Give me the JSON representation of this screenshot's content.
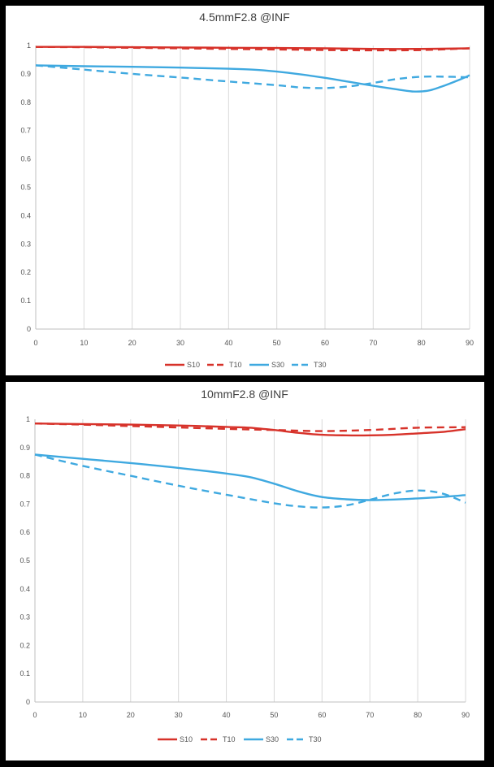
{
  "chart_data": [
    {
      "type": "line",
      "title": "4.5mmF2.8 @INF",
      "xlim": [
        0,
        90
      ],
      "ylim": [
        0,
        1
      ],
      "x_ticks": [
        "0",
        "10",
        "20",
        "30",
        "40",
        "50",
        "60",
        "70",
        "80",
        "90"
      ],
      "y_ticks": [
        "0",
        "0.1",
        "0.2",
        "0.3",
        "0.4",
        "0.5",
        "0.6",
        "0.7",
        "0.8",
        "0.9",
        "1"
      ],
      "grid": "vertical",
      "legend": "bottom",
      "series": [
        {
          "name": "S10",
          "color": "#d7322a",
          "style": "solid",
          "x": [
            0,
            10,
            20,
            30,
            40,
            50,
            60,
            70,
            80,
            90
          ],
          "y": [
            0.995,
            0.995,
            0.994,
            0.993,
            0.992,
            0.991,
            0.99,
            0.988,
            0.988,
            0.99
          ]
        },
        {
          "name": "T10",
          "color": "#d7322a",
          "style": "dashed",
          "x": [
            0,
            10,
            20,
            30,
            40,
            50,
            60,
            70,
            80,
            90
          ],
          "y": [
            0.995,
            0.994,
            0.992,
            0.99,
            0.988,
            0.986,
            0.984,
            0.983,
            0.984,
            0.99
          ]
        },
        {
          "name": "S30",
          "color": "#3fa9e0",
          "style": "solid",
          "x": [
            0,
            10,
            20,
            30,
            40,
            45,
            50,
            55,
            60,
            65,
            70,
            75,
            78,
            80,
            82,
            85,
            88,
            90
          ],
          "y": [
            0.93,
            0.927,
            0.925,
            0.922,
            0.918,
            0.915,
            0.908,
            0.898,
            0.886,
            0.872,
            0.858,
            0.845,
            0.838,
            0.838,
            0.843,
            0.86,
            0.88,
            0.895
          ]
        },
        {
          "name": "T30",
          "color": "#3fa9e0",
          "style": "dashed",
          "x": [
            0,
            10,
            20,
            30,
            40,
            50,
            55,
            60,
            65,
            70,
            75,
            80,
            85,
            90
          ],
          "y": [
            0.93,
            0.915,
            0.9,
            0.887,
            0.873,
            0.86,
            0.852,
            0.85,
            0.856,
            0.868,
            0.882,
            0.89,
            0.89,
            0.888
          ]
        }
      ]
    },
    {
      "type": "line",
      "title": "10mmF2.8 @INF",
      "xlim": [
        0,
        90
      ],
      "ylim": [
        0,
        1
      ],
      "x_ticks": [
        "0",
        "10",
        "20",
        "30",
        "40",
        "50",
        "60",
        "70",
        "80",
        "90"
      ],
      "y_ticks": [
        "0",
        "0.1",
        "0.2",
        "0.3",
        "0.4",
        "0.5",
        "0.6",
        "0.7",
        "0.8",
        "0.9",
        "1"
      ],
      "grid": "vertical",
      "legend": "bottom",
      "series": [
        {
          "name": "S10",
          "color": "#d7322a",
          "style": "solid",
          "x": [
            0,
            10,
            20,
            30,
            40,
            45,
            50,
            55,
            60,
            65,
            70,
            75,
            80,
            85,
            90
          ],
          "y": [
            0.985,
            0.983,
            0.981,
            0.978,
            0.973,
            0.97,
            0.962,
            0.952,
            0.945,
            0.943,
            0.943,
            0.945,
            0.95,
            0.955,
            0.965
          ]
        },
        {
          "name": "T10",
          "color": "#d7322a",
          "style": "dashed",
          "x": [
            0,
            10,
            20,
            30,
            40,
            50,
            60,
            70,
            80,
            90
          ],
          "y": [
            0.985,
            0.981,
            0.976,
            0.971,
            0.966,
            0.962,
            0.958,
            0.962,
            0.97,
            0.972
          ]
        },
        {
          "name": "S30",
          "color": "#3fa9e0",
          "style": "solid",
          "x": [
            0,
            10,
            20,
            30,
            40,
            45,
            50,
            55,
            60,
            65,
            70,
            75,
            80,
            85,
            90
          ],
          "y": [
            0.875,
            0.86,
            0.845,
            0.828,
            0.808,
            0.795,
            0.772,
            0.745,
            0.725,
            0.717,
            0.714,
            0.716,
            0.72,
            0.725,
            0.732
          ]
        },
        {
          "name": "T30",
          "color": "#3fa9e0",
          "style": "dashed",
          "x": [
            0,
            10,
            20,
            30,
            40,
            50,
            55,
            60,
            65,
            70,
            75,
            80,
            85,
            90
          ],
          "y": [
            0.875,
            0.835,
            0.8,
            0.765,
            0.733,
            0.703,
            0.692,
            0.688,
            0.695,
            0.715,
            0.737,
            0.748,
            0.738,
            0.705
          ]
        }
      ]
    }
  ]
}
